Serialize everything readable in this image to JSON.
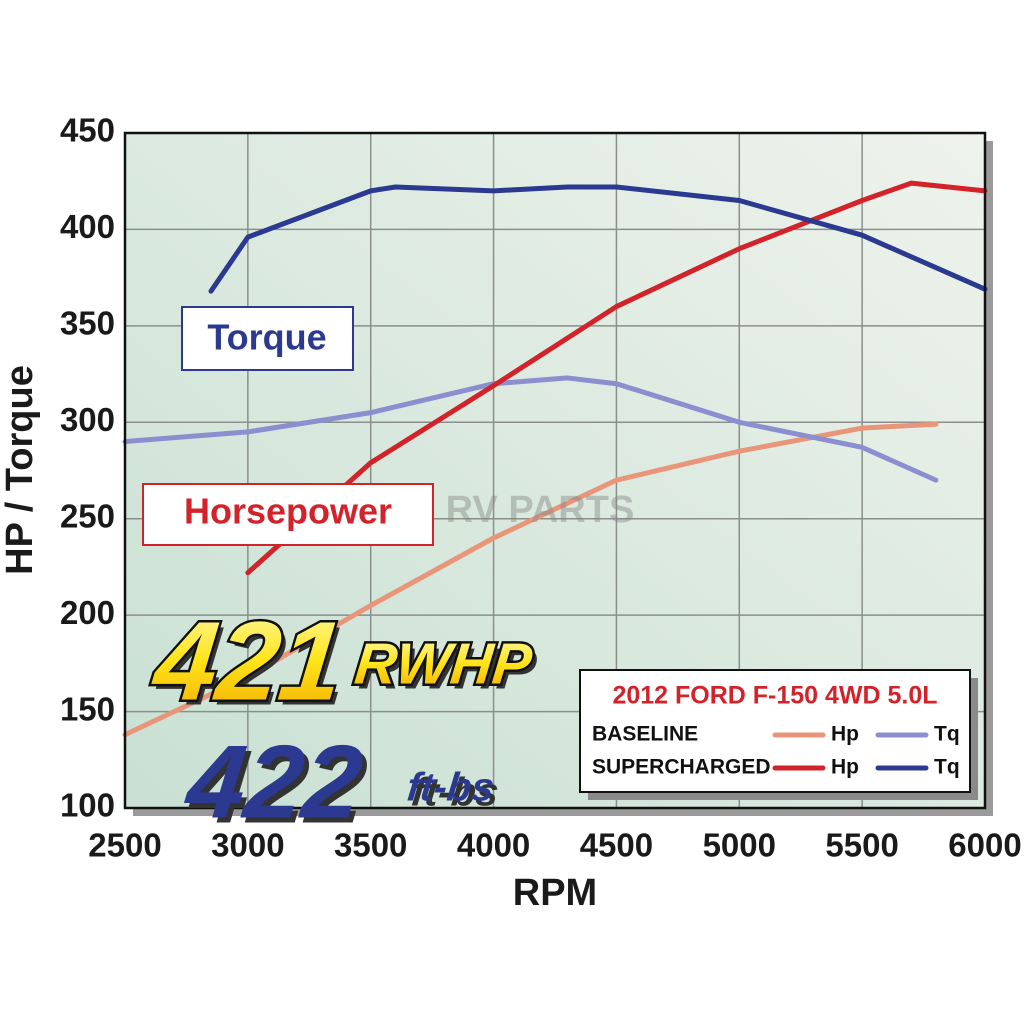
{
  "chart_data": {
    "type": "line",
    "xlabel": "RPM",
    "ylabel": "HP / Torque",
    "xlim": [
      2500,
      6000
    ],
    "ylim": [
      100,
      450
    ],
    "xticks": [
      2500,
      3000,
      3500,
      4000,
      4500,
      5000,
      5500,
      6000
    ],
    "yticks": [
      100,
      150,
      200,
      250,
      300,
      350,
      400,
      450
    ],
    "grid": true,
    "legend": {
      "title": "2012 FORD F-150 4WD 5.0L",
      "position": "lower right"
    },
    "series": [
      {
        "name": "BASELINE",
        "lines": [
          {
            "name": "Hp",
            "color": "#e8957a",
            "x": [
              2500,
              3000,
              3500,
              4000,
              4500,
              5000,
              5500,
              5800
            ],
            "values": [
              138,
              168,
              205,
              240,
              270,
              285,
              297,
              299
            ]
          },
          {
            "name": "Tq",
            "color": "#8b8fcf",
            "x": [
              2500,
              3000,
              3500,
              4000,
              4300,
              4500,
              5000,
              5500,
              5800
            ],
            "values": [
              290,
              295,
              305,
              320,
              323,
              320,
              300,
              287,
              270
            ]
          }
        ]
      },
      {
        "name": "SUPERCHARGED",
        "lines": [
          {
            "name": "Hp",
            "color": "#d2232a",
            "x": [
              3000,
              3500,
              4000,
              4500,
              5000,
              5500,
              5700,
              6000
            ],
            "values": [
              222,
              279,
              319,
              360,
              390,
              415,
              424,
              420
            ]
          },
          {
            "name": "Tq",
            "color": "#2b3990",
            "x": [
              2850,
              3000,
              3500,
              3600,
              4000,
              4300,
              4500,
              5000,
              5500,
              6000
            ],
            "values": [
              368,
              396,
              420,
              422,
              420,
              422,
              422,
              415,
              397,
              369
            ]
          }
        ]
      }
    ],
    "annotations": [
      {
        "text": "Torque"
      },
      {
        "text": "Horsepower"
      },
      {
        "text": "421"
      },
      {
        "text": "RWHP"
      },
      {
        "text": "422"
      },
      {
        "text": "ft-bs"
      }
    ],
    "watermark": "RV PARTS"
  }
}
